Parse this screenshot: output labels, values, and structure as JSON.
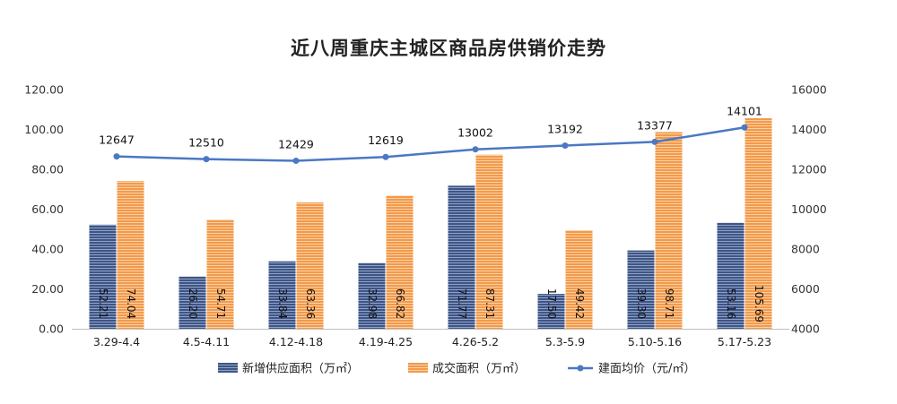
{
  "chart_data": {
    "type": "bar",
    "title": "近八周重庆主城区商品房供销价走势",
    "categories": [
      "3.29-4.4",
      "4.5-4.11",
      "4.12-4.18",
      "4.19-4.25",
      "4.26-5.2",
      "5.3-5.9",
      "5.10-5.16",
      "5.17-5.23"
    ],
    "series": [
      {
        "name": "新增供应面积（万㎡）",
        "kind": "bar",
        "axis": "left",
        "color": "#4a5f8f",
        "values": [
          52.21,
          26.2,
          33.84,
          32.98,
          71.77,
          17.5,
          39.3,
          53.16
        ],
        "labels": [
          "52.21",
          "26.20",
          "33.84",
          "32.98",
          "71.77",
          "17.50",
          "39.30",
          "53.16"
        ]
      },
      {
        "name": "成交面积（万㎡）",
        "kind": "bar",
        "axis": "left",
        "color": "#f39a4a",
        "values": [
          74.04,
          54.71,
          63.36,
          66.82,
          87.31,
          49.42,
          98.71,
          105.69
        ],
        "labels": [
          "74.04",
          "54.71",
          "63.36",
          "66.82",
          "87.31",
          "49.42",
          "98.71",
          "105.69"
        ]
      },
      {
        "name": "建面均价（元/㎡）",
        "kind": "line",
        "axis": "right",
        "color": "#4a78c4",
        "values": [
          12647,
          12510,
          12429,
          12619,
          13002,
          13192,
          13377,
          14101
        ],
        "labels": [
          "12647",
          "12510",
          "12429",
          "12619",
          "13002",
          "13192",
          "13377",
          "14101"
        ]
      }
    ],
    "y_left": {
      "range": [
        0,
        120
      ],
      "ticks": [
        "0.00",
        "20.00",
        "40.00",
        "60.00",
        "80.00",
        "100.00",
        "120.00"
      ]
    },
    "y_right": {
      "range": [
        4000,
        16000
      ],
      "ticks": [
        "4000",
        "6000",
        "8000",
        "10000",
        "12000",
        "14000",
        "16000"
      ]
    },
    "grid": false,
    "legend_position": "bottom"
  }
}
